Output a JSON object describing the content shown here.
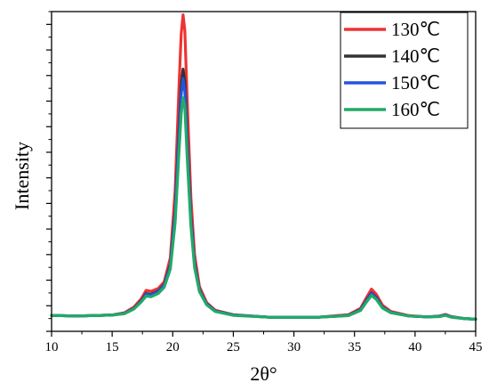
{
  "chart_data": {
    "type": "line",
    "xlabel": "2θ°",
    "ylabel": "Intensity",
    "xlim": [
      10,
      45
    ],
    "ylim": [
      0,
      100
    ],
    "y_tick_labels_shown": false,
    "grid": false,
    "legend_position": "top-right",
    "x_ticks": [
      10,
      15,
      20,
      25,
      30,
      35,
      40,
      45
    ],
    "x_tick_labels": [
      "10",
      "15",
      "20",
      "25",
      "30",
      "35",
      "40",
      "45"
    ],
    "series": [
      {
        "name": "130℃",
        "color": "#ee3333",
        "x": [
          10,
          12,
          14,
          15,
          16,
          16.8,
          17.4,
          17.8,
          18.2,
          18.8,
          19.3,
          19.8,
          20.2,
          20.5,
          20.7,
          20.85,
          21.0,
          21.2,
          21.5,
          21.8,
          22.2,
          22.8,
          23.5,
          25,
          28,
          32,
          34.5,
          35.5,
          36.0,
          36.4,
          36.8,
          37.3,
          38,
          39.5,
          41,
          42.0,
          42.5,
          43.0,
          44,
          45
        ],
        "y": [
          5.0,
          4.8,
          5.0,
          5.1,
          5.8,
          7.6,
          10.2,
          12.8,
          12.5,
          13.4,
          15.5,
          23.0,
          44.0,
          75.0,
          93.0,
          99.0,
          94.0,
          72.0,
          42.0,
          24.0,
          14.0,
          9.0,
          6.6,
          5.2,
          4.4,
          4.4,
          5.2,
          7.2,
          10.6,
          13.2,
          11.6,
          8.2,
          6.2,
          4.9,
          4.5,
          4.8,
          5.3,
          4.6,
          4.0,
          3.8
        ]
      },
      {
        "name": "140℃",
        "color": "#333333",
        "x": [
          10,
          12,
          14,
          15,
          16,
          16.8,
          17.4,
          17.8,
          18.2,
          18.8,
          19.3,
          19.8,
          20.2,
          20.5,
          20.7,
          20.85,
          21.0,
          21.2,
          21.5,
          21.8,
          22.2,
          22.8,
          23.5,
          25,
          28,
          32,
          34.5,
          35.5,
          36.0,
          36.4,
          36.8,
          37.3,
          38,
          39.5,
          41,
          42.0,
          42.5,
          43.0,
          44,
          45
        ],
        "y": [
          5.0,
          4.8,
          5.0,
          5.1,
          5.6,
          7.2,
          9.6,
          11.8,
          11.6,
          12.6,
          14.6,
          21.0,
          38.0,
          62.0,
          77.0,
          82.0,
          78.0,
          60.0,
          36.0,
          21.5,
          13.0,
          8.6,
          6.4,
          5.1,
          4.4,
          4.4,
          5.0,
          6.8,
          9.8,
          12.0,
          10.6,
          7.6,
          5.9,
          4.8,
          4.5,
          4.7,
          5.1,
          4.5,
          4.0,
          3.8
        ]
      },
      {
        "name": "150℃",
        "color": "#2255dd",
        "x": [
          10,
          12,
          14,
          15,
          16,
          16.8,
          17.4,
          17.8,
          18.2,
          18.8,
          19.3,
          19.8,
          20.2,
          20.5,
          20.7,
          20.85,
          21.0,
          21.2,
          21.5,
          21.8,
          22.2,
          22.8,
          23.5,
          25,
          28,
          32,
          34.5,
          35.5,
          36.0,
          36.4,
          36.8,
          37.3,
          38,
          39.5,
          41,
          42.0,
          42.5,
          43.0,
          44,
          45
        ],
        "y": [
          5.0,
          4.8,
          5.0,
          5.1,
          5.6,
          7.1,
          9.4,
          11.6,
          11.4,
          12.4,
          14.4,
          20.5,
          37.0,
          60.0,
          74.0,
          79.0,
          75.0,
          58.0,
          35.0,
          21.0,
          12.8,
          8.5,
          6.3,
          5.1,
          4.4,
          4.4,
          5.0,
          6.7,
          9.6,
          11.8,
          10.4,
          7.5,
          5.9,
          4.8,
          4.5,
          4.7,
          5.1,
          4.5,
          4.0,
          3.8
        ]
      },
      {
        "name": "160℃",
        "color": "#22aa66",
        "x": [
          10,
          12,
          14,
          15,
          16,
          16.8,
          17.4,
          17.8,
          18.2,
          18.8,
          19.3,
          19.8,
          20.2,
          20.5,
          20.7,
          20.85,
          21.0,
          21.2,
          21.5,
          21.8,
          22.2,
          22.8,
          23.5,
          25,
          28,
          32,
          34.5,
          35.5,
          36.0,
          36.4,
          36.8,
          37.3,
          38,
          39.5,
          41,
          42.0,
          42.5,
          43.0,
          44,
          45
        ],
        "y": [
          5.0,
          4.8,
          5.0,
          5.1,
          5.5,
          7.0,
          9.2,
          11.0,
          10.8,
          11.8,
          13.8,
          19.5,
          34.0,
          55.0,
          68.0,
          73.0,
          70.0,
          54.0,
          33.0,
          20.0,
          12.4,
          8.3,
          6.2,
          5.0,
          4.4,
          4.4,
          4.9,
          6.5,
          9.2,
          11.2,
          10.0,
          7.3,
          5.8,
          4.8,
          4.5,
          4.6,
          5.0,
          4.4,
          4.0,
          3.8
        ]
      }
    ]
  }
}
